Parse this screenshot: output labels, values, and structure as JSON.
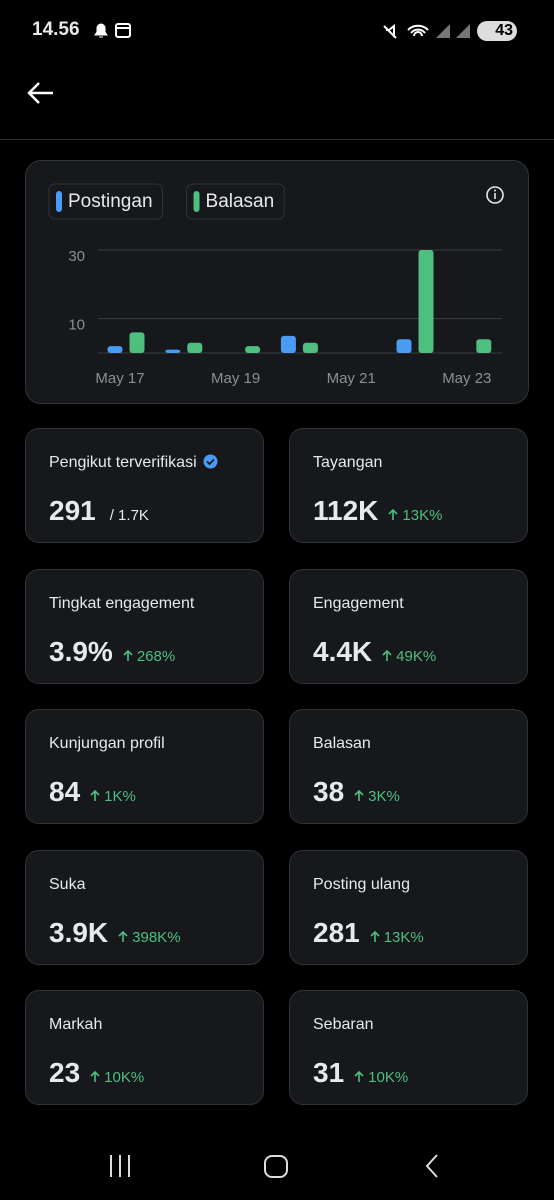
{
  "status_bar": {
    "time": "14.56",
    "battery": "43"
  },
  "chart_data": {
    "type": "bar",
    "categories": [
      "May 17",
      null,
      "May 19",
      null,
      "May 21",
      null,
      "May 23"
    ],
    "series": [
      {
        "name": "Postingan",
        "color": "#4a9bf4",
        "values": [
          2,
          1,
          0,
          5,
          0,
          4,
          0
        ]
      },
      {
        "name": "Balasan",
        "color": "#4ebf7e",
        "values": [
          6,
          3,
          2,
          3,
          0,
          30,
          4
        ]
      }
    ],
    "ylim": [
      0,
      30
    ],
    "yticks": [
      10,
      30
    ],
    "grid": true
  },
  "cards": [
    {
      "label": "Pengikut terverifikasi",
      "value": "291",
      "total": "/ 1.7K"
    },
    {
      "label": "Tayangan",
      "value": "112K",
      "change": "13K%"
    },
    {
      "label": "Tingkat engagement",
      "value": "3.9%",
      "change": "268%"
    },
    {
      "label": "Engagement",
      "value": "4.4K",
      "change": "49K%"
    },
    {
      "label": "Kunjungan profil",
      "value": "84",
      "change": "1K%"
    },
    {
      "label": "Balasan",
      "value": "38",
      "change": "3K%"
    },
    {
      "label": "Suka",
      "value": "3.9K",
      "change": "398K%"
    },
    {
      "label": "Posting ulang",
      "value": "281",
      "change": "13K%"
    },
    {
      "label": "Markah",
      "value": "23",
      "change": "10K%"
    },
    {
      "label": "Sebaran",
      "value": "31",
      "change": "10K%"
    }
  ]
}
